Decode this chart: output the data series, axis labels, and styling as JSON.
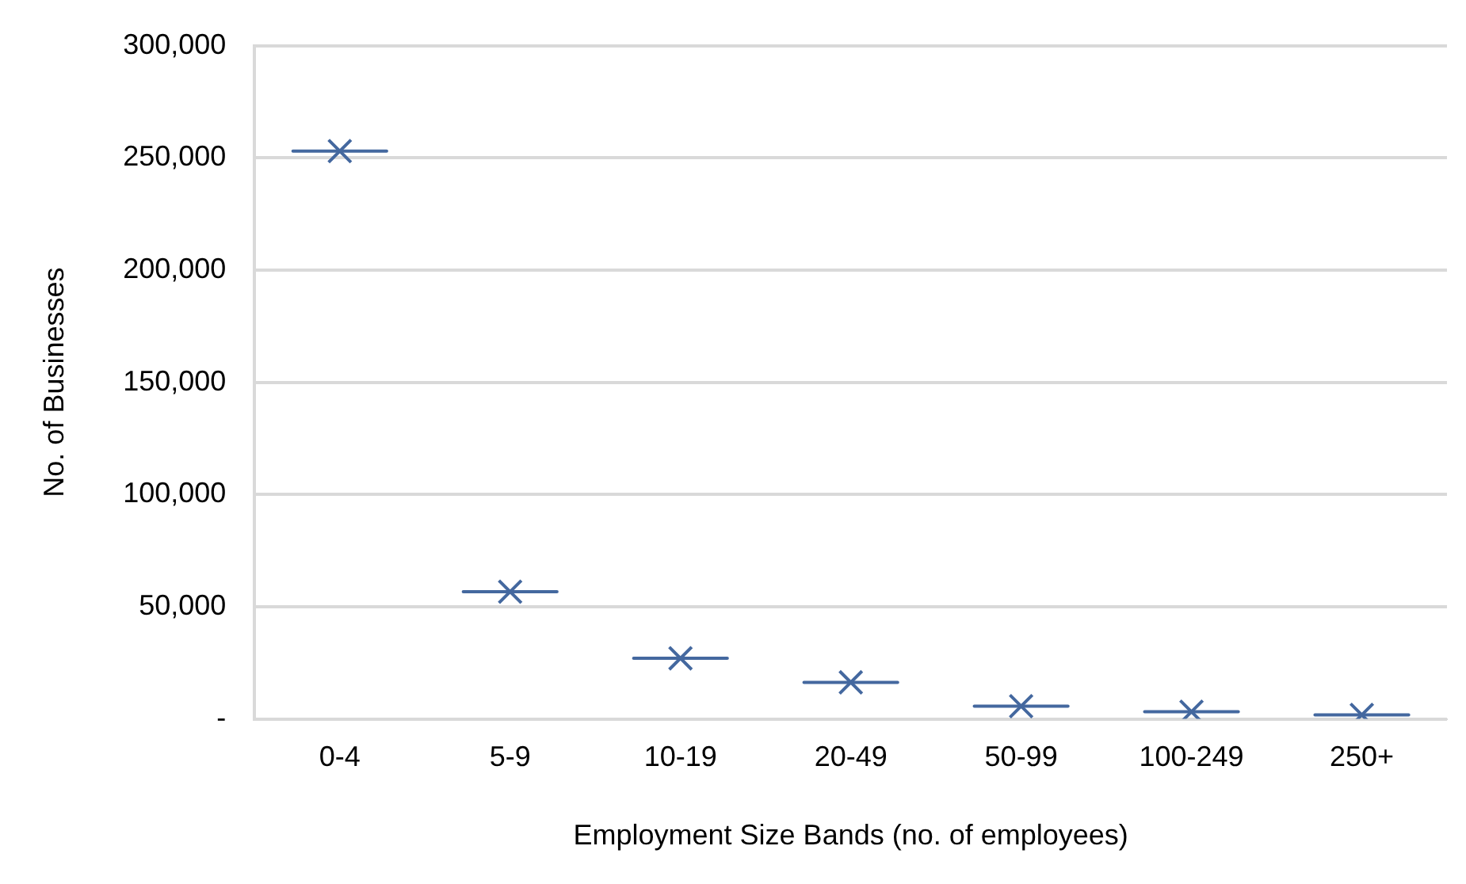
{
  "chart_data": {
    "type": "box",
    "xlabel": "Employment Size Bands (no. of employees)",
    "ylabel": "No. of Businesses",
    "categories": [
      "0-4",
      "5-9",
      "10-19",
      "20-49",
      "50-99",
      "100-249",
      "250+"
    ],
    "series": [
      {
        "color": "#44689f",
        "boxes": [
          {
            "low": 253000,
            "q1": 253000,
            "median": 253000,
            "q3": 253000,
            "high": 253000,
            "mean": 253000
          },
          {
            "low": 56700,
            "q1": 56700,
            "median": 56700,
            "q3": 56700,
            "high": 56700,
            "mean": 56700
          },
          {
            "low": 27000,
            "q1": 27000,
            "median": 27000,
            "q3": 27000,
            "high": 27000,
            "mean": 27000
          },
          {
            "low": 16300,
            "q1": 16300,
            "median": 16300,
            "q3": 16300,
            "high": 16300,
            "mean": 16300
          },
          {
            "low": 5700,
            "q1": 5700,
            "median": 5700,
            "q3": 5700,
            "high": 5700,
            "mean": 5700
          },
          {
            "low": 3200,
            "q1": 3200,
            "median": 3200,
            "q3": 3200,
            "high": 3200,
            "mean": 3200
          },
          {
            "low": 1800,
            "q1": 1800,
            "median": 1800,
            "q3": 1800,
            "high": 1800,
            "mean": 1800
          }
        ]
      }
    ],
    "ylim": [
      0,
      300000
    ],
    "yticks": [
      {
        "value": 0,
        "label": "-"
      },
      {
        "value": 50000,
        "label": "50,000"
      },
      {
        "value": 100000,
        "label": "100,000"
      },
      {
        "value": 150000,
        "label": "150,000"
      },
      {
        "value": 200000,
        "label": "200,000"
      },
      {
        "value": 250000,
        "label": "250,000"
      },
      {
        "value": 300000,
        "label": "300,000"
      }
    ],
    "grid": "y",
    "marker": "cross",
    "legend": false
  }
}
